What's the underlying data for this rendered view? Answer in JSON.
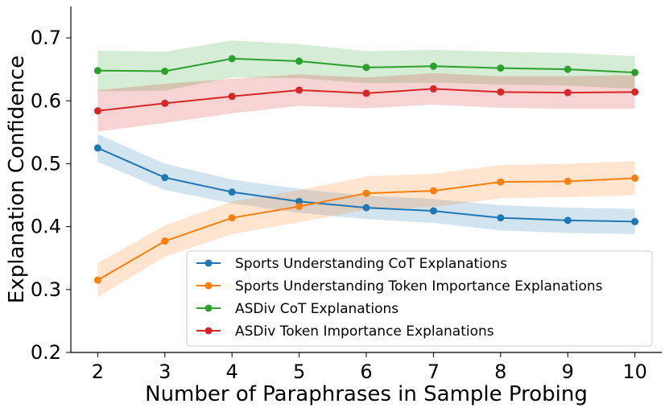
{
  "chart_data": {
    "type": "line",
    "title": "",
    "xlabel": "Number of Paraphrases in Sample Probing",
    "ylabel": "Explanation Confidence",
    "x": [
      2,
      3,
      4,
      5,
      6,
      7,
      8,
      9,
      10
    ],
    "xlim": [
      1.6,
      10.4
    ],
    "ylim": [
      0.2,
      0.75
    ],
    "xticks": [
      "2",
      "3",
      "4",
      "5",
      "6",
      "7",
      "8",
      "9",
      "10"
    ],
    "yticks": [
      "0.2",
      "0.3",
      "0.4",
      "0.5",
      "0.6",
      "0.7"
    ],
    "grid": false,
    "legend_position": "lower-right",
    "series": [
      {
        "name": "Sports Understanding CoT Explanations",
        "color": "#1f77b4",
        "values": [
          0.525,
          0.478,
          0.455,
          0.44,
          0.43,
          0.425,
          0.414,
          0.41,
          0.408
        ],
        "lower": [
          0.503,
          0.458,
          0.437,
          0.422,
          0.412,
          0.406,
          0.394,
          0.39,
          0.388
        ],
        "upper": [
          0.547,
          0.5,
          0.475,
          0.46,
          0.449,
          0.444,
          0.434,
          0.43,
          0.428
        ]
      },
      {
        "name": "Sports Understanding Token Importance Explanations",
        "color": "#ff7f0e",
        "values": [
          0.315,
          0.377,
          0.414,
          0.432,
          0.453,
          0.457,
          0.471,
          0.472,
          0.477
        ],
        "lower": [
          0.288,
          0.352,
          0.388,
          0.407,
          0.427,
          0.431,
          0.445,
          0.447,
          0.45
        ],
        "upper": [
          0.342,
          0.402,
          0.44,
          0.458,
          0.48,
          0.484,
          0.498,
          0.5,
          0.504
        ]
      },
      {
        "name": "ASDiv CoT Explanations",
        "color": "#2ca02c",
        "values": [
          0.648,
          0.647,
          0.667,
          0.663,
          0.653,
          0.655,
          0.652,
          0.65,
          0.645
        ],
        "lower": [
          0.615,
          0.616,
          0.637,
          0.636,
          0.628,
          0.629,
          0.626,
          0.624,
          0.619
        ],
        "upper": [
          0.68,
          0.678,
          0.696,
          0.69,
          0.679,
          0.681,
          0.678,
          0.676,
          0.671
        ]
      },
      {
        "name": "ASDiv Token Importance Explanations",
        "color": "#d62728",
        "values": [
          0.584,
          0.596,
          0.607,
          0.617,
          0.612,
          0.619,
          0.614,
          0.613,
          0.614
        ],
        "lower": [
          0.551,
          0.565,
          0.58,
          0.592,
          0.588,
          0.594,
          0.589,
          0.587,
          0.587
        ],
        "upper": [
          0.617,
          0.627,
          0.635,
          0.642,
          0.637,
          0.644,
          0.639,
          0.639,
          0.641
        ]
      }
    ]
  }
}
